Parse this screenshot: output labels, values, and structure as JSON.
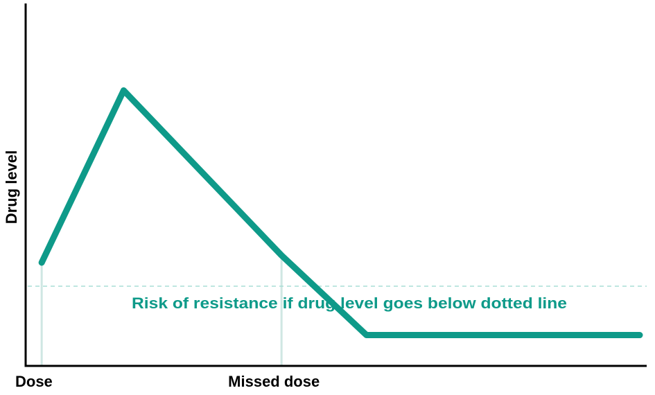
{
  "chart_data": {
    "type": "line",
    "title": "",
    "ylabel": "Drug level",
    "xlabel": "",
    "xlim": [
      0,
      100
    ],
    "ylim": [
      0,
      100
    ],
    "x_ticks": [
      {
        "label": "Dose",
        "x": 1.5
      },
      {
        "label": "Missed dose",
        "x": 41
      }
    ],
    "series": [
      {
        "values": [
          {
            "x": 1.5,
            "y": 28.5
          },
          {
            "x": 15,
            "y": 76
          },
          {
            "x": 41,
            "y": 30.5
          },
          {
            "x": 55,
            "y": 8.5
          },
          {
            "x": 100,
            "y": 8.5
          }
        ]
      }
    ],
    "threshold": {
      "y": 22
    },
    "annotation": "Risk of resistance if drug level goes below dotted line",
    "colors": {
      "line": "#0e9a89",
      "threshold": "#a8ddd5",
      "marker_lines": "#cfe7e3",
      "axis": "#000000",
      "annotation": "#0e9a89"
    }
  }
}
